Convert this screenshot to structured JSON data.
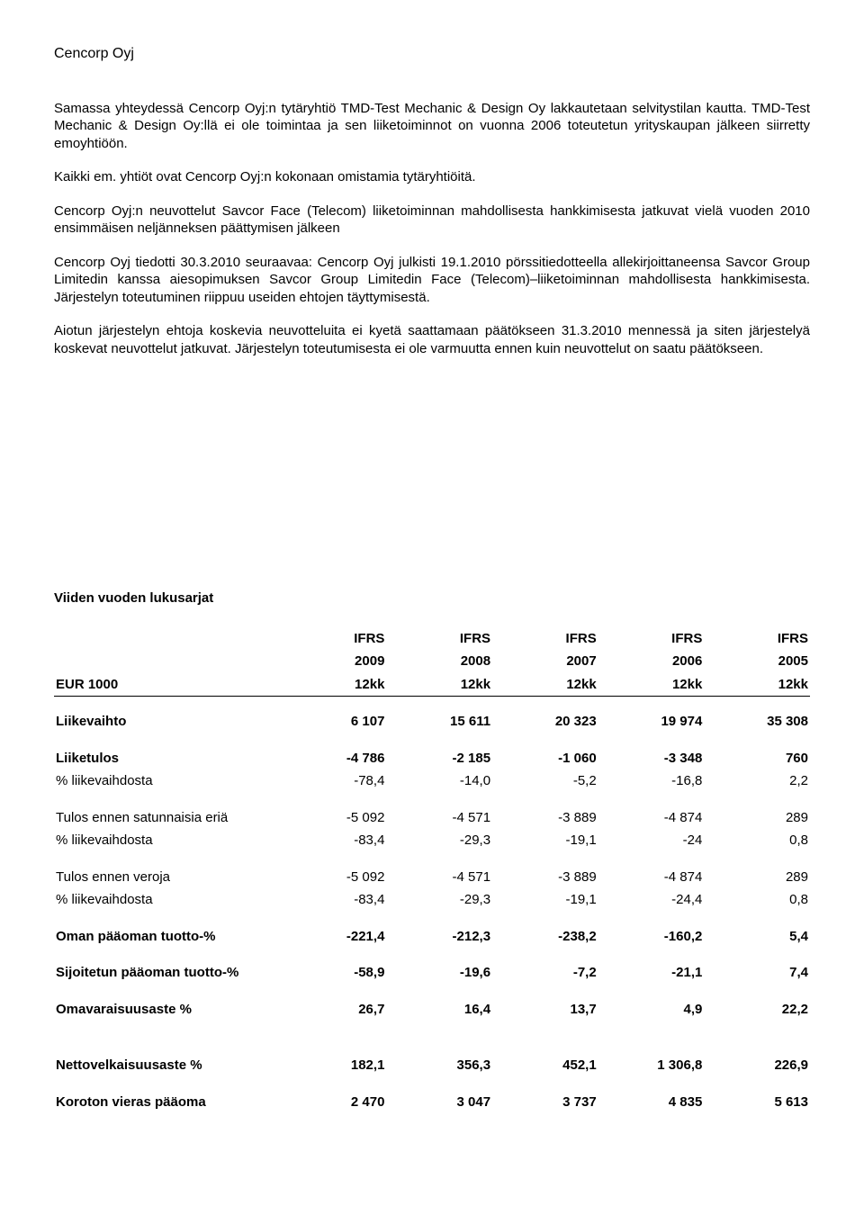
{
  "header": "Cencorp Oyj",
  "paragraphs": {
    "p1": "Samassa yhteydessä Cencorp Oyj:n tytäryhtiö TMD-Test Mechanic & Design Oy lakkautetaan selvitystilan kautta. TMD-Test Mechanic & Design Oy:llä ei ole toimintaa ja sen liiketoiminnot on vuonna 2006 toteutetun yrityskaupan jälkeen siirretty emoyhtiöön.",
    "p2": "Kaikki em. yhtiöt ovat Cencorp Oyj:n kokonaan omistamia tytäryhtiöitä.",
    "p3": "Cencorp Oyj:n neuvottelut Savcor Face (Telecom) liiketoiminnan mahdollisesta hankkimisesta jatkuvat vielä vuoden 2010 ensimmäisen neljänneksen päättymisen jälkeen",
    "p4": "Cencorp Oyj tiedotti 30.3.2010 seuraavaa: Cencorp Oyj julkisti 19.1.2010 pörssitiedotteella allekirjoittaneensa Savcor Group Limitedin kanssa aiesopimuksen Savcor Group Limitedin Face (Telecom)–liiketoiminnan mahdollisesta hankkimisesta. Järjestelyn toteutuminen riippuu useiden ehtojen täyttymisestä.",
    "p5": "Aiotun järjestelyn ehtoja koskevia neuvotteluita ei kyetä saattamaan päätökseen 31.3.2010 mennessä ja siten järjestelyä koskevat neuvottelut jatkuvat. Järjestelyn toteutumisesta ei ole varmuutta ennen kuin neuvottelut on saatu päätökseen."
  },
  "tableTitle": "Viiden vuoden lukusarjat",
  "table": {
    "rowHeaderLabel": "EUR 1000",
    "colHeaders": [
      {
        "l1": "IFRS",
        "l2": "2009",
        "l3": "12kk"
      },
      {
        "l1": "IFRS",
        "l2": "2008",
        "l3": "12kk"
      },
      {
        "l1": "IFRS",
        "l2": "2007",
        "l3": "12kk"
      },
      {
        "l1": "IFRS",
        "l2": "2006",
        "l3": "12kk"
      },
      {
        "l1": "IFRS",
        "l2": "2005",
        "l3": "12kk"
      }
    ],
    "rows": [
      {
        "label": "Liikevaihto",
        "vals": [
          "6 107",
          "15 611",
          "20 323",
          "19 974",
          "35 308"
        ],
        "bold": true,
        "gap": true
      },
      {
        "label": "Liiketulos",
        "vals": [
          "-4 786",
          "-2 185",
          "-1 060",
          "-3 348",
          "760"
        ],
        "bold": true,
        "gap": true
      },
      {
        "label": "% liikevaihdosta",
        "vals": [
          "-78,4",
          "-14,0",
          "-5,2",
          "-16,8",
          "2,2"
        ]
      },
      {
        "label": "Tulos ennen satunnaisia eriä",
        "vals": [
          "-5 092",
          "-4 571",
          "-3 889",
          "-4 874",
          "289"
        ],
        "gap": true
      },
      {
        "label": "% liikevaihdosta",
        "vals": [
          "-83,4",
          "-29,3",
          "-19,1",
          "-24",
          "0,8"
        ]
      },
      {
        "label": "Tulos ennen  veroja",
        "vals": [
          "-5 092",
          "-4 571",
          "-3 889",
          "-4 874",
          "289"
        ],
        "gap": true
      },
      {
        "label": "% liikevaihdosta",
        "vals": [
          "-83,4",
          "-29,3",
          "-19,1",
          "-24,4",
          "0,8"
        ]
      },
      {
        "label": "Oman pääoman tuotto-%",
        "vals": [
          "-221,4",
          "-212,3",
          "-238,2",
          "-160,2",
          "5,4"
        ],
        "bold": true,
        "gap": true
      },
      {
        "label": "Sijoitetun pääoman tuotto-%",
        "vals": [
          "-58,9",
          "-19,6",
          "-7,2",
          "-21,1",
          "7,4"
        ],
        "bold": true,
        "gap": true
      },
      {
        "label": "Omavaraisuusaste %",
        "vals": [
          "26,7",
          "16,4",
          "13,7",
          "4,9",
          "22,2"
        ],
        "bold": true,
        "gap": true
      },
      {
        "label": "Nettovelkaisuusaste %",
        "vals": [
          "182,1",
          "356,3",
          "452,1",
          "1 306,8",
          "226,9"
        ],
        "bold": true,
        "gap": true,
        "biggap": true
      },
      {
        "label": "Koroton vieras pääoma",
        "vals": [
          "2 470",
          "3 047",
          "3 737",
          "4 835",
          "5 613"
        ],
        "bold": true,
        "gap": true
      }
    ]
  }
}
